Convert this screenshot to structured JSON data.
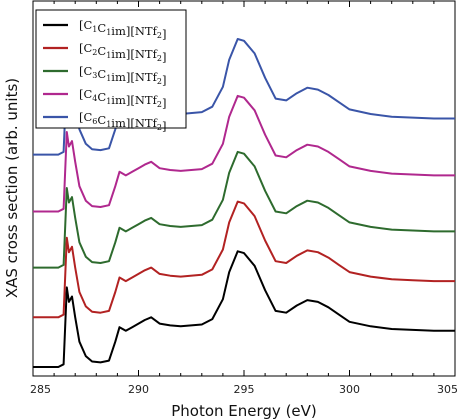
{
  "chart_data": {
    "type": "line",
    "xlabel": "Photon Energy (eV)",
    "ylabel": "XAS cross section (arb. units)",
    "xlim": [
      285,
      305
    ],
    "xticks": [
      285,
      290,
      295,
      300,
      305
    ],
    "yticks": [],
    "grid": false,
    "legend_position": "top-left",
    "series": [
      {
        "name": "[C₁C₁im][NTf₂]",
        "legend_main": "[C",
        "legend_a": "1",
        "legend_mid": "C",
        "legend_b": "1",
        "legend_tail": "im][NTf",
        "legend_c": "2",
        "legend_end": "]",
        "color": "#000000",
        "offset": 0,
        "x": [
          285,
          286.2,
          286.45,
          286.6,
          286.7,
          286.85,
          287.0,
          287.2,
          287.5,
          287.8,
          288.2,
          288.6,
          288.9,
          289.1,
          289.4,
          289.7,
          290.0,
          290.3,
          290.6,
          291.0,
          291.5,
          292,
          293,
          293.5,
          294,
          294.3,
          294.7,
          295.0,
          295.5,
          296,
          296.5,
          297,
          297.5,
          298,
          298.5,
          299,
          299.5,
          300,
          301,
          302,
          303,
          304,
          305
        ],
        "y": [
          0,
          0,
          0.03,
          0.88,
          0.72,
          0.78,
          0.55,
          0.28,
          0.12,
          0.06,
          0.05,
          0.07,
          0.28,
          0.44,
          0.4,
          0.44,
          0.48,
          0.52,
          0.55,
          0.48,
          0.46,
          0.45,
          0.47,
          0.53,
          0.75,
          1.05,
          1.28,
          1.26,
          1.12,
          0.85,
          0.62,
          0.6,
          0.68,
          0.74,
          0.72,
          0.66,
          0.58,
          0.5,
          0.45,
          0.42,
          0.41,
          0.4,
          0.4
        ]
      },
      {
        "name": "[C₂C₁im][NTf₂]",
        "legend_main": "[C",
        "legend_a": "2",
        "legend_mid": "C",
        "legend_b": "1",
        "legend_tail": "im][NTf",
        "legend_c": "2",
        "legend_end": "]",
        "color": "#b22222",
        "offset": 0.55,
        "x": [
          285,
          286.2,
          286.45,
          286.6,
          286.7,
          286.85,
          287.0,
          287.2,
          287.5,
          287.8,
          288.2,
          288.6,
          288.9,
          289.1,
          289.4,
          289.7,
          290.0,
          290.3,
          290.6,
          291.0,
          291.5,
          292,
          293,
          293.5,
          294,
          294.3,
          294.7,
          295.0,
          295.5,
          296,
          296.5,
          297,
          297.5,
          298,
          298.5,
          299,
          299.5,
          300,
          301,
          302,
          303,
          304,
          305
        ],
        "y": [
          0,
          0,
          0.03,
          0.88,
          0.72,
          0.78,
          0.55,
          0.28,
          0.12,
          0.06,
          0.05,
          0.07,
          0.28,
          0.44,
          0.4,
          0.44,
          0.48,
          0.52,
          0.55,
          0.48,
          0.46,
          0.45,
          0.47,
          0.53,
          0.75,
          1.05,
          1.28,
          1.26,
          1.12,
          0.85,
          0.62,
          0.6,
          0.68,
          0.74,
          0.72,
          0.66,
          0.58,
          0.5,
          0.45,
          0.42,
          0.41,
          0.4,
          0.4
        ]
      },
      {
        "name": "[C₃C₁im][NTf₂]",
        "legend_main": "[C",
        "legend_a": "3",
        "legend_mid": "C",
        "legend_b": "1",
        "legend_tail": "im][NTf",
        "legend_c": "2",
        "legend_end": "]",
        "color": "#2e6b2e",
        "offset": 1.1,
        "x": [
          285,
          286.2,
          286.45,
          286.6,
          286.7,
          286.85,
          287.0,
          287.2,
          287.5,
          287.8,
          288.2,
          288.6,
          288.9,
          289.1,
          289.4,
          289.7,
          290.0,
          290.3,
          290.6,
          291.0,
          291.5,
          292,
          293,
          293.5,
          294,
          294.3,
          294.7,
          295.0,
          295.5,
          296,
          296.5,
          297,
          297.5,
          298,
          298.5,
          299,
          299.5,
          300,
          301,
          302,
          303,
          304,
          305
        ],
        "y": [
          0,
          0,
          0.03,
          0.88,
          0.72,
          0.78,
          0.55,
          0.28,
          0.12,
          0.06,
          0.05,
          0.07,
          0.28,
          0.44,
          0.4,
          0.44,
          0.48,
          0.52,
          0.55,
          0.48,
          0.46,
          0.45,
          0.47,
          0.53,
          0.75,
          1.05,
          1.28,
          1.26,
          1.12,
          0.85,
          0.62,
          0.6,
          0.68,
          0.74,
          0.72,
          0.66,
          0.58,
          0.5,
          0.45,
          0.42,
          0.41,
          0.4,
          0.4
        ]
      },
      {
        "name": "[C₄C₁im][NTf₂]",
        "legend_main": "[C",
        "legend_a": "4",
        "legend_mid": "C",
        "legend_b": "1",
        "legend_tail": "im][NTf",
        "legend_c": "2",
        "legend_end": "]",
        "color": "#b0288e",
        "offset": 1.72,
        "x": [
          285,
          286.2,
          286.45,
          286.6,
          286.7,
          286.85,
          287.0,
          287.2,
          287.5,
          287.8,
          288.2,
          288.6,
          288.9,
          289.1,
          289.4,
          289.7,
          290.0,
          290.3,
          290.6,
          291.0,
          291.5,
          292,
          293,
          293.5,
          294,
          294.3,
          294.7,
          295.0,
          295.5,
          296,
          296.5,
          297,
          297.5,
          298,
          298.5,
          299,
          299.5,
          300,
          301,
          302,
          303,
          304,
          305
        ],
        "y": [
          0,
          0,
          0.03,
          0.88,
          0.72,
          0.78,
          0.55,
          0.28,
          0.12,
          0.06,
          0.05,
          0.07,
          0.28,
          0.44,
          0.4,
          0.44,
          0.48,
          0.52,
          0.55,
          0.48,
          0.46,
          0.45,
          0.47,
          0.53,
          0.75,
          1.05,
          1.28,
          1.26,
          1.12,
          0.85,
          0.62,
          0.6,
          0.68,
          0.74,
          0.72,
          0.66,
          0.58,
          0.5,
          0.45,
          0.42,
          0.41,
          0.4,
          0.4
        ]
      },
      {
        "name": "[C₆C₁im][NTf₂]",
        "legend_main": "[C",
        "legend_a": "6",
        "legend_mid": "C",
        "legend_b": "1",
        "legend_tail": "im][NTf",
        "legend_c": "2",
        "legend_end": "]",
        "color": "#3a55a8",
        "offset": 2.35,
        "x": [
          285,
          286.2,
          286.45,
          286.6,
          286.7,
          286.85,
          287.0,
          287.2,
          287.5,
          287.8,
          288.2,
          288.6,
          288.9,
          289.1,
          289.4,
          289.7,
          290.0,
          290.3,
          290.6,
          291.0,
          291.5,
          292,
          293,
          293.5,
          294,
          294.3,
          294.7,
          295.0,
          295.5,
          296,
          296.5,
          297,
          297.5,
          298,
          298.5,
          299,
          299.5,
          300,
          301,
          302,
          303,
          304,
          305
        ],
        "y": [
          0,
          0,
          0.03,
          0.88,
          0.72,
          0.78,
          0.55,
          0.28,
          0.12,
          0.06,
          0.05,
          0.07,
          0.28,
          0.44,
          0.4,
          0.44,
          0.48,
          0.52,
          0.55,
          0.48,
          0.46,
          0.45,
          0.47,
          0.53,
          0.75,
          1.05,
          1.28,
          1.26,
          1.12,
          0.85,
          0.62,
          0.6,
          0.68,
          0.74,
          0.72,
          0.66,
          0.58,
          0.5,
          0.45,
          0.42,
          0.41,
          0.4,
          0.4
        ]
      }
    ]
  }
}
